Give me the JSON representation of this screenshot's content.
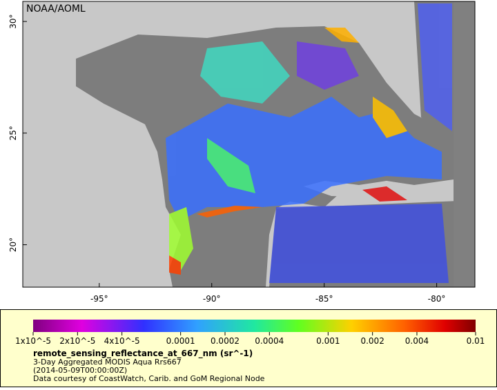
{
  "map": {
    "credit": "NOAA/AOML",
    "lon_range": [
      -98.4,
      -78.3
    ],
    "lat_range": [
      18.1,
      30.9
    ],
    "lon_ticks": [
      {
        "value": -95,
        "label": "-95°"
      },
      {
        "value": -90,
        "label": "-90°"
      },
      {
        "value": -85,
        "label": "-85°"
      },
      {
        "value": -80,
        "label": "-80°"
      }
    ],
    "lat_ticks": [
      {
        "value": 20,
        "label": "20°"
      },
      {
        "value": 25,
        "label": "25°"
      },
      {
        "value": 30,
        "label": "30°"
      }
    ]
  },
  "colorbar": {
    "log_scale": true,
    "range": [
      1e-05,
      0.01
    ],
    "ticks": [
      {
        "value": 1e-05,
        "label": "1x10^-5"
      },
      {
        "value": 2e-05,
        "label": "2x10^-5"
      },
      {
        "value": 4e-05,
        "label": "4x10^-5"
      },
      {
        "value": 0.0001,
        "label": "0.0001"
      },
      {
        "value": 0.0002,
        "label": "0.0002"
      },
      {
        "value": 0.0004,
        "label": "0.0004"
      },
      {
        "value": 0.001,
        "label": "0.001"
      },
      {
        "value": 0.002,
        "label": "0.002"
      },
      {
        "value": 0.004,
        "label": "0.004"
      },
      {
        "value": 0.01,
        "label": "0.01"
      }
    ]
  },
  "legend": {
    "variable": "remote_sensing_reflectance_at_667_nm (sr^-1)",
    "lines": [
      "3-Day Aggregated MODIS Aqua Rrs667",
      "(2014-05-09T00:00:00Z)",
      "Data courtesy of CoastWatch, Carib. and GoM Regional Node"
    ]
  }
}
